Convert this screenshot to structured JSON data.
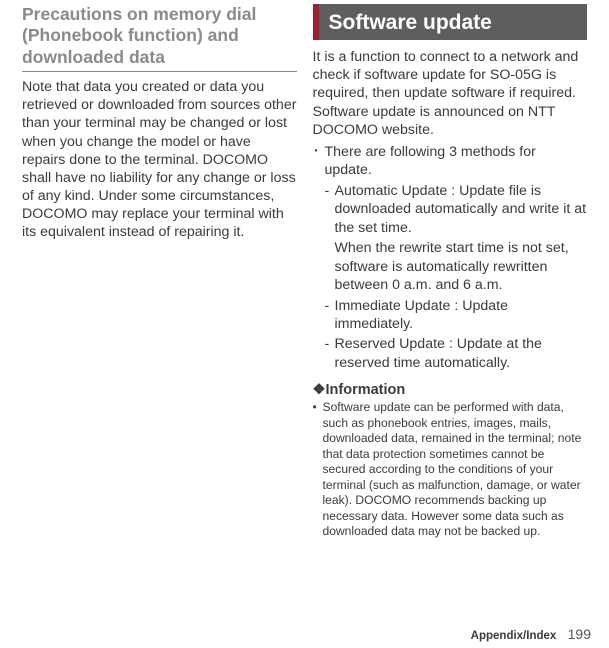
{
  "left": {
    "title": "Precautions on memory dial (Phonebook function) and downloaded data",
    "body": "Note that data you created or data you retrieved or downloaded from sources other than your terminal may be changed or lost when you change the model or have repairs done to the terminal. DOCOMO shall have no liability for any change or loss of any kind. Under some circumstances, DOCOMO may replace your terminal with its equivalent instead of repairing it."
  },
  "right": {
    "header": "Software update",
    "intro": "It is a function to connect to a network and check if software update for SO-05G is required, then update software if required. Software update is announced on NTT DOCOMO website.",
    "bullet": "There are following 3 methods for update.",
    "subs": [
      {
        "main": "Automatic Update : Update file is downloaded automatically and write it at the set time.",
        "extra": "When the rewrite start time is not set, software is automatically rewritten between 0 a.m. and 6 a.m."
      },
      {
        "main": "Immediate Update : Update immediately.",
        "extra": ""
      },
      {
        "main": "Reserved Update : Update at the reserved time automatically.",
        "extra": ""
      }
    ],
    "info_heading": "❖Information",
    "info_body": "Software update can be performed with data, such as phonebook entries, images, mails, downloaded data, remained in the terminal; note that data protection sometimes cannot be secured according to the conditions of your terminal (such as malfunction, damage, or water leak). DOCOMO recommends backing up necessary data. However some data such as downloaded data may not be backed up."
  },
  "footer": {
    "section": "Appendix/Index",
    "page": "199"
  },
  "glyphs": {
    "bullet": "･",
    "dash": "-",
    "info_dot": "•"
  }
}
